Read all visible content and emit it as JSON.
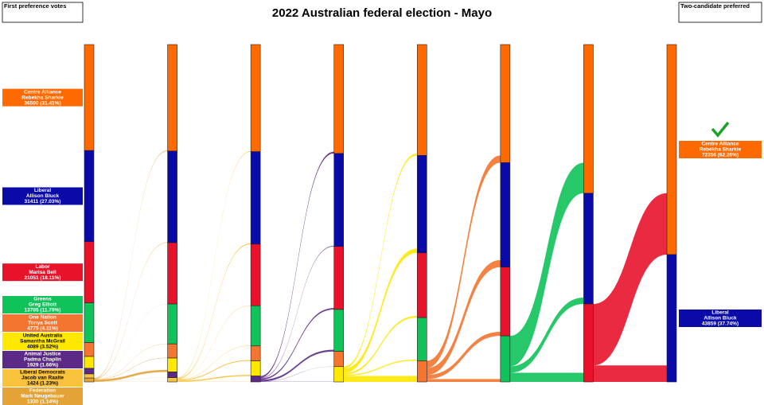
{
  "chart_data": {
    "type": "sankey",
    "title": "2022 Australian federal election - Mayo",
    "left_header": "First preference votes",
    "right_header": "Two-candidate preferred",
    "candidates": [
      {
        "party": "Centre Alliance",
        "name": "Rebekha Sharkie",
        "label": "36500 (31.41%)",
        "color": "#ff6a00",
        "text_color": "#ffffff"
      },
      {
        "party": "Liberal",
        "name": "Allison Bluck",
        "label": "31411 (27.03%)",
        "color": "#0a0aa8",
        "text_color": "#ffffff"
      },
      {
        "party": "Labor",
        "name": "Marisa Bell",
        "label": "21051 (18.11%)",
        "color": "#e8132b",
        "text_color": "#ffffff"
      },
      {
        "party": "Greens",
        "name": "Greg Elliott",
        "label": "13705 (11.79%)",
        "color": "#10c25a",
        "text_color": "#ffffff"
      },
      {
        "party": "One Nation",
        "name": "Tonya Scott",
        "label": "4775 (4.11%)",
        "color": "#f3752f",
        "text_color": "#ffffff"
      },
      {
        "party": "United Australia",
        "name": "Samantha McGrail",
        "label": "4089 (3.52%)",
        "color": "#ffe800",
        "text_color": "#000000"
      },
      {
        "party": "Animal Justice",
        "name": "Padma Chaplin",
        "label": "1929 (1.66%)",
        "color": "#5b2a86",
        "text_color": "#ffffff"
      },
      {
        "party": "Liberal Democrats",
        "name": "Jacob van Raalte",
        "label": "1424 (1.23%)",
        "color": "#f9c23c",
        "text_color": "#000000"
      },
      {
        "party": "Federation",
        "name": "Mark Neugebauer",
        "label": "1330 (1.14%)",
        "color": "#e3a336",
        "text_color": "#ffffff"
      }
    ],
    "final": [
      {
        "party": "Centre Alliance",
        "name": "Rebekha Sharkie",
        "label": "72356 (62.26%)"
      },
      {
        "party": "Liberal",
        "name": "Allison Bluck",
        "label": "43859 (37.74%)"
      }
    ],
    "winner": 0,
    "rounds": [
      [
        36500,
        31411,
        21051,
        13705,
        4775,
        4089,
        1929,
        1424,
        1330
      ],
      [
        36700,
        31561,
        21101,
        13755,
        4875,
        4789,
        1959,
        1474,
        null
      ],
      [
        36900,
        31861,
        21201,
        13855,
        5175,
        5189,
        2033,
        null,
        null
      ],
      [
        37500,
        32061,
        21701,
        14455,
        5225,
        5272,
        null,
        null,
        null
      ],
      [
        38200,
        33561,
        22301,
        14855,
        7297,
        null,
        null,
        null,
        null
      ],
      [
        40700,
        35961,
        23701,
        15852,
        null,
        null,
        null,
        null,
        null
      ],
      [
        51200,
        38161,
        26853,
        null,
        null,
        null,
        null,
        null,
        null
      ],
      [
        72356,
        43859,
        null,
        null,
        null,
        null,
        null,
        null,
        null
      ]
    ]
  }
}
